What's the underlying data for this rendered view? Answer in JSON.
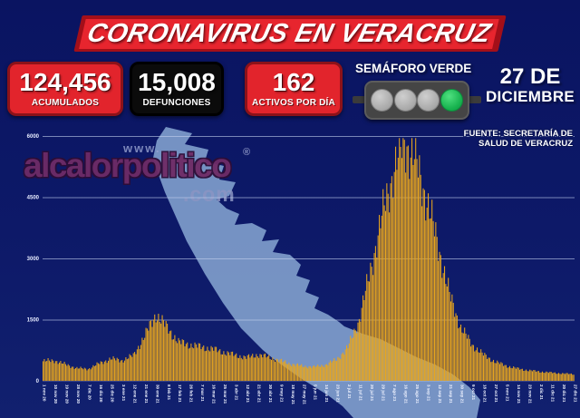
{
  "header": {
    "title": "CORONAVIRUS EN VERACRUZ"
  },
  "stats": [
    {
      "value": "124,456",
      "label": "ACUMULADOS",
      "style": "red"
    },
    {
      "value": "15,008",
      "label": "DEFUNCIONES",
      "style": "black"
    },
    {
      "value": "162",
      "label": "ACTIVOS POR DÍA",
      "style": "red"
    }
  ],
  "semaforo": {
    "label": "SEMÁFORO VERDE",
    "lights": [
      "off",
      "off",
      "off",
      "on"
    ],
    "on_color": "#17b24e",
    "off_color": "#a8a8a8"
  },
  "date": {
    "line1": "27 DE",
    "line2": "DICIEMBRE"
  },
  "source": {
    "line1": "FUENTE: SECRETARÍA DE",
    "line2": "SALUD DE VERACRUZ"
  },
  "watermark": {
    "www": "www.",
    "name": "alcalorpolitico",
    "reg": "®",
    "com": ".com"
  },
  "colors": {
    "background": "#0d1968",
    "banner_red": "#e7252e",
    "banner_dark_red": "#a30f19",
    "box_red": "#e2242c",
    "box_black": "#0b0b0b",
    "bar_gold": "#e8a61e",
    "map_blue": "#7e9cca",
    "grid": "#c3d0ee",
    "text_white": "#ffffff"
  },
  "chart_data": {
    "type": "bar",
    "title": "",
    "xlabel": "",
    "ylabel": "",
    "ylim": [
      0,
      6000
    ],
    "yticks": [
      0,
      1500,
      3000,
      4500,
      6000
    ],
    "grid": true,
    "legend": false,
    "bar_color": "#e8a61e",
    "sampling_note_layout_hint": "daily bars; values sampled at the 9-day x tick labels, interpolated between ticks",
    "x": [
      "1 nov 20",
      "10 nov 20",
      "19 nov 20",
      "28 nov 20",
      "7 dic 20",
      "16 dic 20",
      "25 dic 20",
      "3 ene 21",
      "12 ene 21",
      "21 ene 21",
      "30 ene 21",
      "8 feb 21",
      "17 feb 21",
      "26 feb 21",
      "7 mar 21",
      "16 mar 21",
      "25 mar 21",
      "3 abr 21",
      "12 abr 21",
      "21 abr 21",
      "30 abr 21",
      "9 may 21",
      "18 may 21",
      "27 may 21",
      "5 jun 21",
      "14 jun 21",
      "23 jun 21",
      "2 jul 21",
      "11 jul 21",
      "20 jul 21",
      "29 jul 21",
      "7 ago 21",
      "16 ago 21",
      "25 ago 21",
      "3 sep 21",
      "12 sep 21",
      "21 sep 21",
      "30 sep 21",
      "9 oct 21",
      "18 oct 21",
      "27 oct 21",
      "5 nov 21",
      "14 nov 21",
      "23 nov 21",
      "2 dic 21",
      "11 dic 21",
      "20 dic 21",
      "27 dic 21"
    ],
    "values": [
      480,
      500,
      400,
      310,
      290,
      430,
      540,
      500,
      620,
      1100,
      1630,
      1300,
      950,
      880,
      830,
      780,
      700,
      630,
      570,
      640,
      580,
      490,
      410,
      360,
      340,
      390,
      520,
      820,
      1500,
      2700,
      4000,
      5100,
      5870,
      5400,
      4400,
      3300,
      2100,
      1300,
      880,
      640,
      470,
      370,
      300,
      255,
      225,
      200,
      180,
      162
    ]
  }
}
